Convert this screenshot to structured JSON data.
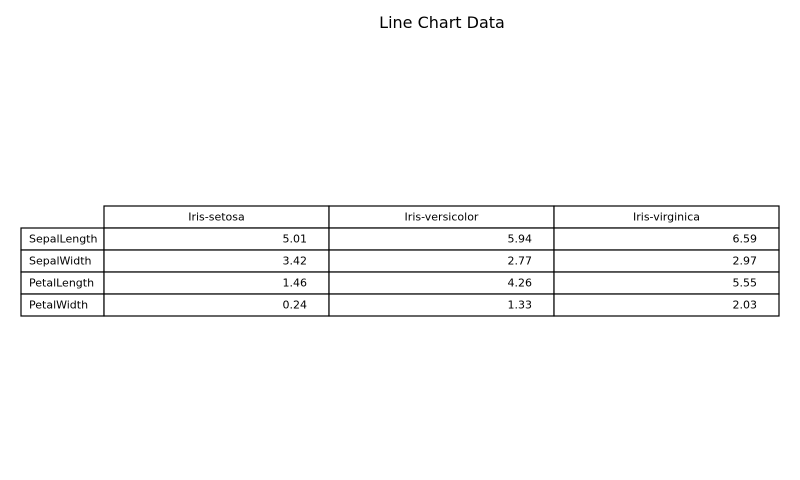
{
  "chart_data": {
    "type": "table",
    "title": "Line Chart Data",
    "columns": [
      "Iris-setosa",
      "Iris-versicolor",
      "Iris-virginica"
    ],
    "rows": [
      {
        "label": "SepalLength",
        "values": [
          "5.01",
          "5.94",
          "6.59"
        ]
      },
      {
        "label": "SepalWidth",
        "values": [
          "3.42",
          "2.77",
          "2.97"
        ]
      },
      {
        "label": "PetalLength",
        "values": [
          "1.46",
          "4.26",
          "5.55"
        ]
      },
      {
        "label": "PetalWidth",
        "values": [
          "0.24",
          "1.33",
          "2.03"
        ]
      }
    ]
  }
}
